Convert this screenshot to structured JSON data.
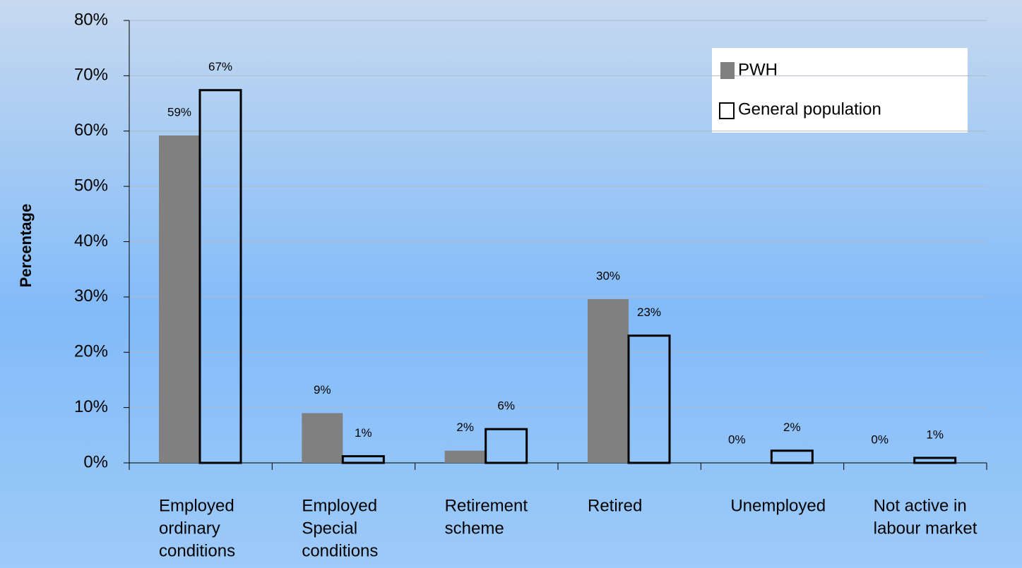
{
  "chart_data": {
    "type": "bar",
    "y_label": "Percentage",
    "categories": [
      [
        "Employed",
        "ordinary",
        "conditions"
      ],
      [
        "Employed",
        "Special",
        "conditions"
      ],
      [
        "Retirement",
        "scheme"
      ],
      [
        "Retired"
      ],
      [
        "Unemployed"
      ],
      [
        "Not active in",
        "labour market"
      ]
    ],
    "series": [
      {
        "name": "PWH",
        "color": "#808080",
        "values": [
          59.2,
          9,
          2.2,
          29.6,
          0,
          0
        ],
        "value_labels": [
          "59%",
          "9%",
          "2%",
          "30%",
          "0%",
          "0%"
        ]
      },
      {
        "name": "General population",
        "color": "none",
        "values": [
          67.4,
          1.2,
          6.1,
          23,
          2.2,
          0.9
        ],
        "value_labels": [
          "67%",
          "1%",
          "6%",
          "23%",
          "2%",
          "1%"
        ]
      }
    ],
    "ylim": [
      0,
      80
    ],
    "yticks": [
      {
        "value": 0,
        "label": "0%"
      },
      {
        "value": 10,
        "label": "10%"
      },
      {
        "value": 20,
        "label": "20%"
      },
      {
        "value": 30,
        "label": "30%"
      },
      {
        "value": 40,
        "label": "40%"
      },
      {
        "value": 50,
        "label": "50%"
      },
      {
        "value": 60,
        "label": "60%"
      },
      {
        "value": 70,
        "label": "70%"
      },
      {
        "value": 80,
        "label": "80%"
      }
    ],
    "grid": true
  }
}
